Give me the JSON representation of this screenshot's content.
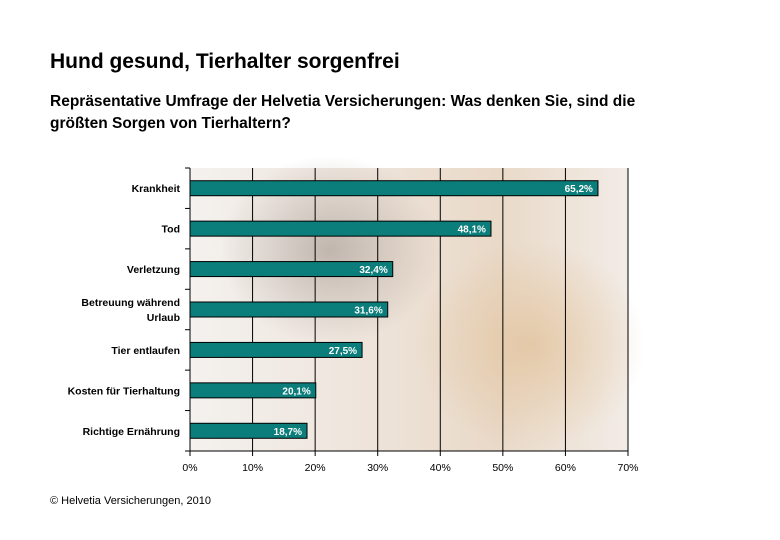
{
  "title": "Hund gesund, Tierhalter sorgenfrei",
  "subtitle": "Repräsentative Umfrage der Helvetia Versicherungen: Was denken Sie, sind die größten Sorgen von Tierhaltern?",
  "footer": "© Helvetia Versicherungen, 2010",
  "colors": {
    "bar": "#0b7d7a",
    "bar_border": "#000000",
    "grid": "#000000",
    "background_photo_tone": "#e8ddd2"
  },
  "chart_data": {
    "type": "bar",
    "orientation": "horizontal",
    "categories": [
      [
        "Krankheit"
      ],
      [
        "Tod"
      ],
      [
        "Verletzung"
      ],
      [
        "Betreuung während",
        "Urlaub"
      ],
      [
        "Tier entlaufen"
      ],
      [
        "Kosten für Tierhaltung"
      ],
      [
        "Richtige Ernährung"
      ]
    ],
    "values": [
      65.2,
      48.1,
      32.4,
      31.6,
      27.5,
      20.1,
      18.7
    ],
    "value_labels": [
      "65,2%",
      "48,1%",
      "32,4%",
      "31,6%",
      "27,5%",
      "20,1%",
      "18,7%"
    ],
    "xlim": [
      0,
      70
    ],
    "xticks": [
      0,
      10,
      20,
      30,
      40,
      50,
      60,
      70
    ],
    "xtick_labels": [
      "0%",
      "10%",
      "20%",
      "30%",
      "40%",
      "50%",
      "60%",
      "70%"
    ],
    "grid": "vertical",
    "background": "photo of a veterinarian with a golden retriever"
  }
}
